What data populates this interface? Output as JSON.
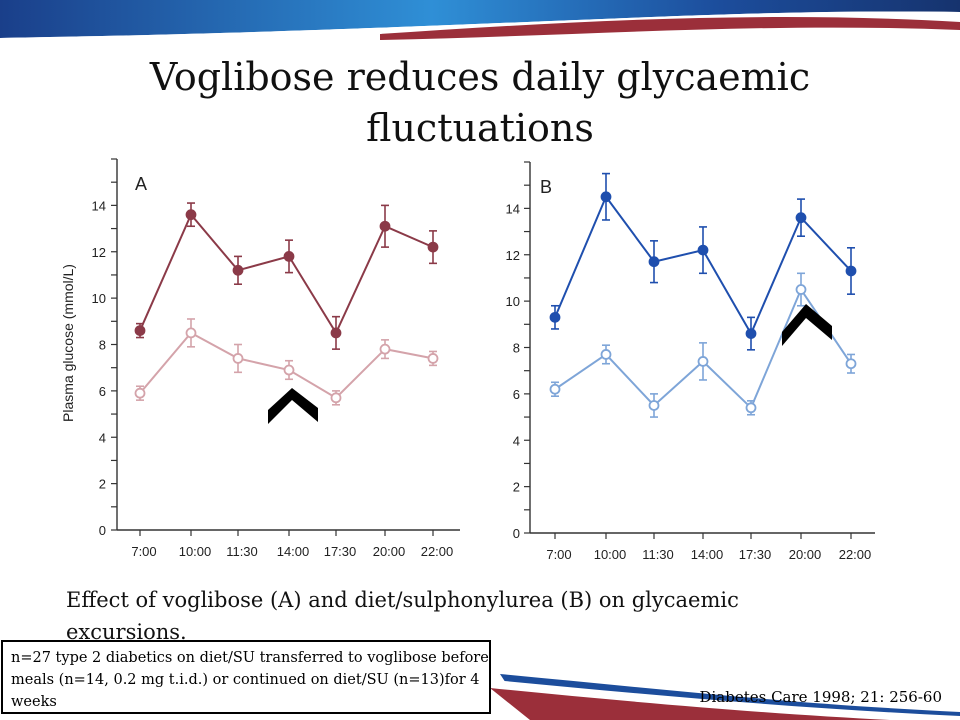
{
  "slide": {
    "title_line1": "Voglibose reduces daily glycaemic",
    "title_line2": "fluctuations",
    "caption": "Effect of voglibose (A) and diet/sulphonylurea (B) on glycaemic excursions.",
    "note": "n=27 type 2 diabetics on diet/SU transferred to voglibose before meals (n=14, 0.2 mg t.i.d.) or continued on diet/SU (n=13)for 4 weeks",
    "reference": "Diabetes Care 1998; 21: 256-60"
  },
  "colors": {
    "panelA_closed": "#8b3a48",
    "panelA_open": "#d4a3aa",
    "panelB_closed": "#1f4fae",
    "panelB_open": "#7ea5d8",
    "banner_blue": "#1c4d9c",
    "banner_red": "#9b2f3a"
  },
  "chart_data": [
    {
      "type": "line",
      "panel_label": "A",
      "ylabel": "Plasma glucose (mmol/L)",
      "xlabel": "",
      "ylim": [
        0,
        16
      ],
      "y_ticks": [
        "0",
        "2",
        "4",
        "6",
        "8",
        "10",
        "12",
        "14"
      ],
      "categories": [
        "7:00",
        "10:00",
        "11:30",
        "14:00",
        "17:30",
        "20:00",
        "22:00"
      ],
      "series": [
        {
          "name": "closed",
          "marker": "filled",
          "values": [
            8.6,
            13.6,
            11.2,
            11.8,
            8.5,
            13.1,
            12.2
          ],
          "errors": [
            0.3,
            0.5,
            0.6,
            0.7,
            0.7,
            0.9,
            0.7
          ]
        },
        {
          "name": "open",
          "marker": "open",
          "values": [
            5.9,
            8.5,
            7.4,
            6.9,
            5.7,
            7.8,
            7.4
          ],
          "errors": [
            0.3,
            0.6,
            0.6,
            0.4,
            0.3,
            0.4,
            0.3
          ]
        }
      ],
      "annotation": "chevron-marker"
    },
    {
      "type": "line",
      "panel_label": "B",
      "ylabel": "",
      "xlabel": "",
      "ylim": [
        0,
        16
      ],
      "y_ticks": [
        "0",
        "2",
        "4",
        "6",
        "8",
        "10",
        "12",
        "14"
      ],
      "categories": [
        "7:00",
        "10:00",
        "11:30",
        "14:00",
        "17:30",
        "20:00",
        "22:00"
      ],
      "series": [
        {
          "name": "closed",
          "marker": "filled",
          "values": [
            9.3,
            14.5,
            11.7,
            12.2,
            8.6,
            13.6,
            11.3
          ],
          "errors": [
            0.5,
            1.0,
            0.9,
            1.0,
            0.7,
            0.8,
            1.0
          ]
        },
        {
          "name": "open",
          "marker": "open",
          "values": [
            6.2,
            7.7,
            5.5,
            7.4,
            5.4,
            10.5,
            7.3
          ],
          "errors": [
            0.3,
            0.4,
            0.5,
            0.8,
            0.3,
            0.7,
            0.4
          ]
        }
      ],
      "annotation": "chevron-marker"
    }
  ]
}
